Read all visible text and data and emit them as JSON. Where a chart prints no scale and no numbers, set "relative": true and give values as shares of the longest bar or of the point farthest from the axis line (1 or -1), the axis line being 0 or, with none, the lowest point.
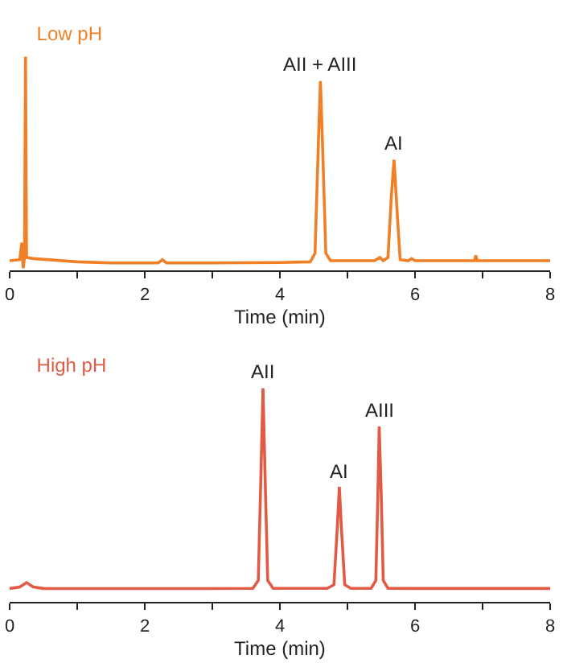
{
  "chart_data": [
    {
      "type": "line",
      "title": "Low pH",
      "relative": true,
      "xlabel": "Time (min)",
      "xlim": [
        0,
        8
      ],
      "xticks": [
        0,
        {
          "value": 1,
          "label": null
        },
        2,
        {
          "value": 3,
          "label": null
        },
        4,
        {
          "value": 5,
          "label": null
        },
        6,
        {
          "value": 7,
          "label": null
        },
        8
      ],
      "tick_labels": "x",
      "grid": false,
      "series": [
        {
          "color": "#f07f26",
          "x": [
            0,
            0.15,
            0.18,
            0.2,
            0.22,
            0.235,
            0.25,
            0.35,
            1,
            1.5,
            2.2,
            2.26,
            2.32,
            3,
            4,
            4.45,
            4.52,
            4.57,
            4.6,
            4.63,
            4.68,
            4.75,
            5.4,
            5.48,
            5.53,
            5.6,
            5.65,
            5.69,
            5.73,
            5.78,
            5.9,
            5.95,
            6,
            6.88,
            6.9,
            6.92,
            8
          ],
          "values": [
            0.045,
            0.05,
            0.13,
            0.01,
            0.06,
            1,
            0.06,
            0.055,
            0.04,
            0.035,
            0.035,
            0.05,
            0.035,
            0.035,
            0.037,
            0.04,
            0.08,
            0.6,
            0.886,
            0.6,
            0.08,
            0.045,
            0.045,
            0.06,
            0.045,
            0.06,
            0.35,
            0.518,
            0.3,
            0.05,
            0.045,
            0.055,
            0.045,
            0.045,
            0.07,
            0.045,
            0.045
          ]
        }
      ],
      "annotations": [
        {
          "text": "AII + AIII",
          "x": 4.6,
          "y": 0.886
        },
        {
          "text": "AI",
          "x": 5.69,
          "y": 0.518
        }
      ]
    },
    {
      "type": "line",
      "title": "High pH",
      "relative": true,
      "xlabel": "Time (min)",
      "xlim": [
        0,
        8
      ],
      "xticks": [
        0,
        {
          "value": 1,
          "label": null
        },
        2,
        {
          "value": 3,
          "label": null
        },
        4,
        {
          "value": 5,
          "label": null
        },
        6,
        {
          "value": 7,
          "label": null
        },
        8
      ],
      "tick_labels": "x",
      "grid": false,
      "series": [
        {
          "color": "#e05a46",
          "x": [
            0,
            0.15,
            0.25,
            0.35,
            0.5,
            1,
            2,
            3,
            3.6,
            3.68,
            3.72,
            3.75,
            3.78,
            3.82,
            3.9,
            4.7,
            4.8,
            4.85,
            4.88,
            4.91,
            4.96,
            5.05,
            5.35,
            5.42,
            5.45,
            5.47,
            5.5,
            5.53,
            5.6,
            6,
            7,
            8
          ],
          "values": [
            0.0625,
            0.07,
            0.09,
            0.07,
            0.0625,
            0.062,
            0.062,
            0.062,
            0.063,
            0.1,
            0.6,
            1,
            0.6,
            0.1,
            0.063,
            0.063,
            0.08,
            0.35,
            0.538,
            0.35,
            0.08,
            0.063,
            0.063,
            0.1,
            0.5,
            0.821,
            0.5,
            0.1,
            0.063,
            0.0625,
            0.0625,
            0.0625
          ]
        }
      ],
      "annotations": [
        {
          "text": "AII",
          "x": 3.75,
          "y": 1
        },
        {
          "text": "AI",
          "x": 4.88,
          "y": 0.538
        },
        {
          "text": "AIII",
          "x": 5.47,
          "y": 0.821
        }
      ]
    }
  ]
}
